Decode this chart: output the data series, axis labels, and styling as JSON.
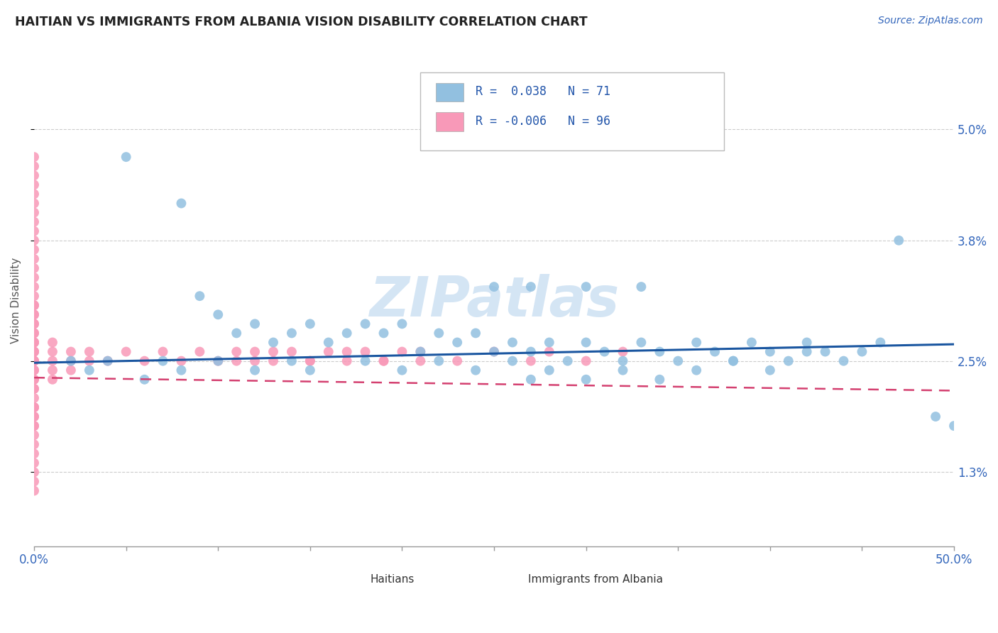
{
  "title": "HAITIAN VS IMMIGRANTS FROM ALBANIA VISION DISABILITY CORRELATION CHART",
  "source_text": "Source: ZipAtlas.com",
  "ylabel": "Vision Disability",
  "xlim": [
    0.0,
    0.5
  ],
  "ylim": [
    0.005,
    0.058
  ],
  "xticks": [
    0.0,
    0.05,
    0.1,
    0.15,
    0.2,
    0.25,
    0.3,
    0.35,
    0.4,
    0.45,
    0.5
  ],
  "xticklabels": [
    "0.0%",
    "",
    "",
    "",
    "",
    "",
    "",
    "",
    "",
    "",
    "50.0%"
  ],
  "ytick_positions": [
    0.013,
    0.025,
    0.038,
    0.05
  ],
  "ytick_labels": [
    "1.3%",
    "2.5%",
    "3.8%",
    "5.0%"
  ],
  "legend_r_blue": "0.038",
  "legend_n_blue": "71",
  "legend_r_pink": "-0.006",
  "legend_n_pink": "96",
  "blue_color": "#92c0e0",
  "pink_color": "#f899b8",
  "trend_blue_color": "#1a56a0",
  "trend_pink_color": "#d44070",
  "watermark": "ZIPatlas",
  "blue_scatter_x": [
    0.05,
    0.08,
    0.09,
    0.1,
    0.11,
    0.12,
    0.13,
    0.14,
    0.15,
    0.16,
    0.17,
    0.18,
    0.19,
    0.2,
    0.21,
    0.22,
    0.23,
    0.24,
    0.25,
    0.26,
    0.27,
    0.28,
    0.29,
    0.3,
    0.31,
    0.32,
    0.33,
    0.34,
    0.35,
    0.36,
    0.37,
    0.38,
    0.39,
    0.4,
    0.41,
    0.42,
    0.43,
    0.44,
    0.45,
    0.02,
    0.03,
    0.04,
    0.06,
    0.07,
    0.08,
    0.1,
    0.12,
    0.14,
    0.15,
    0.18,
    0.2,
    0.22,
    0.24,
    0.26,
    0.27,
    0.28,
    0.3,
    0.32,
    0.34,
    0.36,
    0.38,
    0.4,
    0.42,
    0.46,
    0.47,
    0.49,
    0.5,
    0.25,
    0.27,
    0.3,
    0.33
  ],
  "blue_scatter_y": [
    0.047,
    0.042,
    0.032,
    0.03,
    0.028,
    0.029,
    0.027,
    0.028,
    0.029,
    0.027,
    0.028,
    0.029,
    0.028,
    0.029,
    0.026,
    0.028,
    0.027,
    0.028,
    0.026,
    0.027,
    0.026,
    0.027,
    0.025,
    0.027,
    0.026,
    0.025,
    0.027,
    0.026,
    0.025,
    0.027,
    0.026,
    0.025,
    0.027,
    0.026,
    0.025,
    0.027,
    0.026,
    0.025,
    0.026,
    0.025,
    0.024,
    0.025,
    0.023,
    0.025,
    0.024,
    0.025,
    0.024,
    0.025,
    0.024,
    0.025,
    0.024,
    0.025,
    0.024,
    0.025,
    0.023,
    0.024,
    0.023,
    0.024,
    0.023,
    0.024,
    0.025,
    0.024,
    0.026,
    0.027,
    0.038,
    0.019,
    0.018,
    0.033,
    0.033,
    0.033,
    0.033
  ],
  "pink_scatter_x": [
    0.0,
    0.0,
    0.0,
    0.0,
    0.0,
    0.0,
    0.0,
    0.0,
    0.0,
    0.0,
    0.0,
    0.0,
    0.0,
    0.0,
    0.0,
    0.0,
    0.0,
    0.0,
    0.0,
    0.0,
    0.0,
    0.0,
    0.0,
    0.0,
    0.0,
    0.0,
    0.0,
    0.0,
    0.0,
    0.0,
    0.0,
    0.0,
    0.0,
    0.0,
    0.0,
    0.0,
    0.0,
    0.0,
    0.0,
    0.0,
    0.0,
    0.0,
    0.0,
    0.0,
    0.0,
    0.0,
    0.0,
    0.0,
    0.0,
    0.0,
    0.0,
    0.0,
    0.0,
    0.0,
    0.0,
    0.01,
    0.01,
    0.01,
    0.01,
    0.01,
    0.02,
    0.02,
    0.02,
    0.03,
    0.03,
    0.04,
    0.05,
    0.06,
    0.07,
    0.08,
    0.09,
    0.1,
    0.11,
    0.12,
    0.13,
    0.15,
    0.17,
    0.19,
    0.21,
    0.23,
    0.25,
    0.27,
    0.28,
    0.3,
    0.32,
    0.11,
    0.12,
    0.13,
    0.14,
    0.15,
    0.16,
    0.17,
    0.18,
    0.19,
    0.2,
    0.21
  ],
  "pink_scatter_y": [
    0.02,
    0.021,
    0.022,
    0.022,
    0.023,
    0.023,
    0.024,
    0.024,
    0.025,
    0.025,
    0.025,
    0.025,
    0.026,
    0.026,
    0.026,
    0.027,
    0.027,
    0.027,
    0.028,
    0.028,
    0.029,
    0.029,
    0.03,
    0.03,
    0.031,
    0.031,
    0.032,
    0.033,
    0.034,
    0.035,
    0.036,
    0.037,
    0.038,
    0.039,
    0.04,
    0.041,
    0.042,
    0.043,
    0.044,
    0.045,
    0.046,
    0.047,
    0.018,
    0.019,
    0.02,
    0.011,
    0.012,
    0.013,
    0.014,
    0.015,
    0.016,
    0.017,
    0.018,
    0.019,
    0.02,
    0.023,
    0.024,
    0.025,
    0.026,
    0.027,
    0.024,
    0.025,
    0.026,
    0.025,
    0.026,
    0.025,
    0.026,
    0.025,
    0.026,
    0.025,
    0.026,
    0.025,
    0.026,
    0.025,
    0.026,
    0.025,
    0.026,
    0.025,
    0.026,
    0.025,
    0.026,
    0.025,
    0.026,
    0.025,
    0.026,
    0.025,
    0.026,
    0.025,
    0.026,
    0.025,
    0.026,
    0.025,
    0.026,
    0.025,
    0.026,
    0.025
  ],
  "trend_blue_x0": 0.0,
  "trend_blue_y0": 0.0248,
  "trend_blue_x1": 0.5,
  "trend_blue_y1": 0.0268,
  "trend_pink_x0": 0.0,
  "trend_pink_y0": 0.0232,
  "trend_pink_x1": 0.5,
  "trend_pink_y1": 0.0218
}
